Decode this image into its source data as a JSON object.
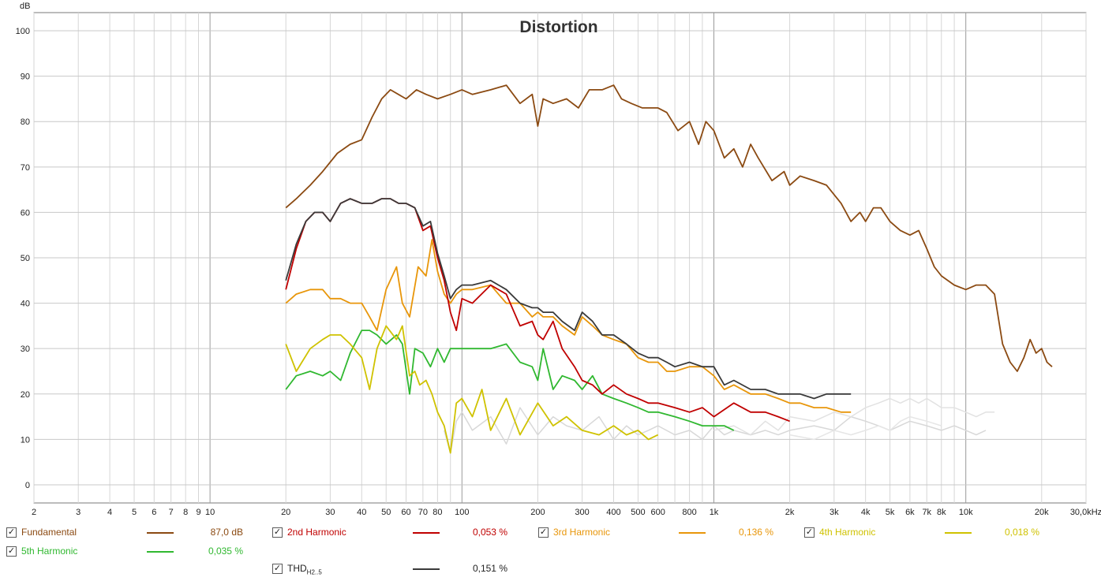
{
  "chart_data": {
    "type": "line",
    "title": "Distortion",
    "xlabel": "",
    "ylabel": "dB",
    "xscale": "log",
    "xlim": [
      2,
      30000
    ],
    "ylim": [
      -4,
      104
    ],
    "grid": true,
    "x_tick_labels": [
      {
        "v": 2,
        "t": "2"
      },
      {
        "v": 3,
        "t": "3"
      },
      {
        "v": 4,
        "t": "4"
      },
      {
        "v": 5,
        "t": "5"
      },
      {
        "v": 6,
        "t": "6"
      },
      {
        "v": 7,
        "t": "7"
      },
      {
        "v": 8,
        "t": "8"
      },
      {
        "v": 9,
        "t": "9"
      },
      {
        "v": 10,
        "t": "10"
      },
      {
        "v": 20,
        "t": "20"
      },
      {
        "v": 30,
        "t": "30"
      },
      {
        "v": 40,
        "t": "40"
      },
      {
        "v": 50,
        "t": "50"
      },
      {
        "v": 60,
        "t": "60"
      },
      {
        "v": 70,
        "t": "70"
      },
      {
        "v": 80,
        "t": "80"
      },
      {
        "v": 100,
        "t": "100"
      },
      {
        "v": 200,
        "t": "200"
      },
      {
        "v": 300,
        "t": "300"
      },
      {
        "v": 400,
        "t": "400"
      },
      {
        "v": 500,
        "t": "500"
      },
      {
        "v": 600,
        "t": "600"
      },
      {
        "v": 800,
        "t": "800"
      },
      {
        "v": 1000,
        "t": "1k"
      },
      {
        "v": 2000,
        "t": "2k"
      },
      {
        "v": 3000,
        "t": "3k"
      },
      {
        "v": 4000,
        "t": "4k"
      },
      {
        "v": 5000,
        "t": "5k"
      },
      {
        "v": 6000,
        "t": "6k"
      },
      {
        "v": 7000,
        "t": "7k"
      },
      {
        "v": 8000,
        "t": "8k"
      },
      {
        "v": 10000,
        "t": "10k"
      },
      {
        "v": 20000,
        "t": "20k"
      },
      {
        "v": 30000,
        "t": "30,0kHz"
      }
    ],
    "y_ticks": [
      0,
      10,
      20,
      30,
      40,
      50,
      60,
      70,
      80,
      90,
      100
    ],
    "series": [
      {
        "name": "Fundamental",
        "color": "#8b4a12",
        "value_label": "87,0 dB",
        "x": [
          20,
          22,
          25,
          28,
          32,
          36,
          40,
          44,
          48,
          52,
          60,
          66,
          72,
          80,
          90,
          100,
          110,
          130,
          150,
          170,
          190,
          200,
          210,
          230,
          260,
          290,
          320,
          360,
          400,
          430,
          470,
          520,
          560,
          600,
          650,
          720,
          800,
          870,
          930,
          1000,
          1100,
          1200,
          1300,
          1400,
          1500,
          1700,
          1900,
          2000,
          2200,
          2500,
          2800,
          3200,
          3500,
          3800,
          4000,
          4300,
          4600,
          5000,
          5500,
          6000,
          6500,
          7000,
          7500,
          8000,
          9000,
          10000,
          11000,
          12000,
          13000,
          14000,
          15000,
          16000,
          17000,
          18000,
          19000,
          20000,
          21000,
          22000
        ],
        "y": [
          61,
          63,
          66,
          69,
          73,
          75,
          76,
          81,
          85,
          87,
          85,
          87,
          86,
          85,
          86,
          87,
          86,
          87,
          88,
          84,
          86,
          79,
          85,
          84,
          85,
          83,
          87,
          87,
          88,
          85,
          84,
          83,
          83,
          83,
          82,
          78,
          80,
          75,
          80,
          78,
          72,
          74,
          70,
          75,
          72,
          67,
          69,
          66,
          68,
          67,
          66,
          62,
          58,
          60,
          58,
          61,
          61,
          58,
          56,
          55,
          56,
          52,
          48,
          46,
          44,
          43,
          44,
          44,
          42,
          31,
          27,
          25,
          28,
          32,
          29,
          30,
          27,
          26
        ]
      },
      {
        "name": "2nd Harmonic",
        "color": "#c00000",
        "value_label": "0,053 %",
        "x": [
          20,
          22,
          24,
          26,
          28,
          30,
          33,
          36,
          40,
          44,
          48,
          52,
          56,
          60,
          65,
          70,
          75,
          80,
          85,
          90,
          95,
          100,
          110,
          130,
          150,
          170,
          190,
          200,
          210,
          230,
          250,
          280,
          300,
          330,
          360,
          400,
          450,
          500,
          550,
          600,
          700,
          800,
          900,
          1000,
          1200,
          1400,
          1600,
          1800,
          2000
        ],
        "y": [
          43,
          52,
          58,
          60,
          60,
          58,
          62,
          63,
          62,
          62,
          63,
          63,
          62,
          62,
          61,
          56,
          57,
          50,
          45,
          38,
          34,
          41,
          40,
          44,
          42,
          35,
          36,
          33,
          32,
          36,
          30,
          26,
          23,
          22,
          20,
          22,
          20,
          19,
          18,
          18,
          17,
          16,
          17,
          15,
          18,
          16,
          16,
          15,
          14
        ]
      },
      {
        "name": "3rd Harmonic",
        "color": "#e8960a",
        "value_label": "0,136 %",
        "x": [
          20,
          22,
          25,
          28,
          30,
          33,
          36,
          40,
          43,
          46,
          50,
          55,
          58,
          62,
          67,
          72,
          76,
          80,
          85,
          90,
          95,
          100,
          110,
          130,
          150,
          170,
          190,
          200,
          210,
          230,
          250,
          280,
          300,
          330,
          360,
          400,
          450,
          500,
          550,
          600,
          650,
          700,
          800,
          900,
          1000,
          1100,
          1200,
          1400,
          1600,
          1800,
          2000,
          2200,
          2500,
          2800,
          3200,
          3500
        ],
        "y": [
          40,
          42,
          43,
          43,
          41,
          41,
          40,
          40,
          37,
          34,
          43,
          48,
          40,
          37,
          48,
          46,
          54,
          47,
          42,
          40,
          42,
          43,
          43,
          44,
          40,
          40,
          37,
          38,
          37,
          37,
          35,
          33,
          37,
          35,
          33,
          32,
          31,
          28,
          27,
          27,
          25,
          25,
          26,
          26,
          24,
          21,
          22,
          20,
          20,
          19,
          18,
          18,
          17,
          17,
          16,
          16
        ]
      },
      {
        "name": "4th Harmonic",
        "color": "#cfc200",
        "value_label": "0,018 %",
        "x": [
          20,
          22,
          25,
          28,
          30,
          33,
          36,
          40,
          43,
          46,
          50,
          55,
          58,
          62,
          65,
          68,
          72,
          76,
          80,
          85,
          90,
          95,
          100,
          110,
          120,
          130,
          150,
          170,
          200,
          230,
          260,
          300,
          350,
          400,
          450,
          500,
          550,
          600
        ],
        "y": [
          31,
          25,
          30,
          32,
          33,
          33,
          31,
          28,
          21,
          30,
          35,
          32,
          35,
          24,
          25,
          22,
          23,
          20,
          16,
          13,
          7,
          18,
          19,
          15,
          21,
          12,
          19,
          11,
          18,
          13,
          15,
          12,
          11,
          13,
          11,
          12,
          10,
          11
        ]
      },
      {
        "name": "5th Harmonic",
        "color": "#30b830",
        "value_label": "0,035 %",
        "x": [
          20,
          22,
          25,
          28,
          30,
          33,
          36,
          40,
          43,
          46,
          50,
          55,
          58,
          62,
          65,
          70,
          75,
          80,
          85,
          90,
          95,
          100,
          110,
          130,
          150,
          170,
          190,
          200,
          210,
          230,
          250,
          280,
          300,
          330,
          360,
          400,
          450,
          500,
          550,
          600,
          700,
          800,
          900,
          1000,
          1100,
          1200
        ],
        "y": [
          21,
          24,
          25,
          24,
          25,
          23,
          29,
          34,
          34,
          33,
          31,
          33,
          31,
          20,
          30,
          29,
          26,
          30,
          27,
          30,
          30,
          30,
          30,
          30,
          31,
          27,
          26,
          23,
          30,
          21,
          24,
          23,
          21,
          24,
          20,
          19,
          18,
          17,
          16,
          16,
          15,
          14,
          13,
          13,
          13,
          12
        ]
      },
      {
        "name": "THD",
        "color": "#3a3a3a",
        "value_label": "0,151 %",
        "x": [
          20,
          22,
          24,
          26,
          28,
          30,
          33,
          36,
          40,
          44,
          48,
          52,
          56,
          60,
          65,
          70,
          75,
          80,
          85,
          90,
          95,
          100,
          110,
          130,
          150,
          170,
          190,
          200,
          210,
          230,
          250,
          280,
          300,
          330,
          360,
          400,
          450,
          500,
          550,
          600,
          650,
          700,
          800,
          900,
          1000,
          1100,
          1200,
          1400,
          1600,
          1800,
          2000,
          2200,
          2500,
          2800,
          3200,
          3500
        ],
        "y": [
          45,
          53,
          58,
          60,
          60,
          58,
          62,
          63,
          62,
          62,
          63,
          63,
          62,
          62,
          61,
          57,
          58,
          51,
          46,
          41,
          43,
          44,
          44,
          45,
          43,
          40,
          39,
          39,
          38,
          38,
          36,
          34,
          38,
          36,
          33,
          33,
          31,
          29,
          28,
          28,
          27,
          26,
          27,
          26,
          26,
          22,
          23,
          21,
          21,
          20,
          20,
          20,
          19,
          20,
          20,
          20
        ]
      }
    ],
    "faded_series": [
      {
        "name": "",
        "color": "#d8d8d8",
        "x": [
          85,
          90,
          95,
          100,
          110,
          130,
          150,
          170,
          200,
          230,
          260,
          300,
          350,
          400,
          450,
          500,
          550,
          600,
          700,
          800,
          900,
          1000,
          1100,
          1200,
          1400,
          1600,
          1800,
          2000,
          2500,
          3000,
          3500,
          4000,
          4500,
          5000,
          6000,
          7000,
          8000,
          9000,
          10000,
          11000,
          12000
        ],
        "y": [
          12,
          7,
          14,
          16,
          12,
          15,
          9,
          17,
          11,
          15,
          13,
          12,
          15,
          10,
          13,
          11,
          12,
          13,
          11,
          12,
          10,
          13,
          11,
          12,
          11,
          12,
          11,
          12,
          13,
          12,
          15,
          14,
          13,
          12,
          14,
          13,
          12,
          13,
          12,
          11,
          12
        ]
      },
      {
        "name": "",
        "color": "#e2e2e2",
        "x": [
          1000,
          1200,
          1400,
          1600,
          1800,
          2000,
          2500,
          3000,
          3500,
          4000,
          4500,
          5000,
          5500,
          6000,
          6500,
          7000,
          7500,
          8000,
          9000,
          10000,
          11000,
          12000,
          13000
        ],
        "y": [
          12,
          13,
          11,
          14,
          12,
          15,
          14,
          16,
          15,
          17,
          18,
          19,
          18,
          19,
          18,
          19,
          18,
          17,
          17,
          16,
          15,
          16,
          16
        ]
      },
      {
        "name": "",
        "color": "#e6e6e6",
        "x": [
          2000,
          2500,
          3000,
          3500,
          4000,
          4500,
          5000,
          5500,
          6000,
          7000,
          8000
        ],
        "y": [
          11,
          10,
          12,
          11,
          12,
          13,
          12,
          14,
          15,
          14,
          13
        ]
      }
    ]
  },
  "legend": {
    "items": [
      {
        "label": "Fundamental",
        "color": "#8b4a12",
        "value": "87,0 dB",
        "check": "✓"
      },
      {
        "label": "2nd Harmonic",
        "color": "#c00000",
        "value": "0,053 %",
        "check": "✓"
      },
      {
        "label": "3rd Harmonic",
        "color": "#e8960a",
        "value": "0,136 %",
        "check": "✓"
      },
      {
        "label": "4th Harmonic",
        "color": "#cfc200",
        "value": "0,018 %",
        "check": "✓"
      },
      {
        "label": "5th Harmonic",
        "color": "#30b830",
        "value": "0,035 %",
        "check": "✓"
      }
    ],
    "thd": {
      "label": "THD",
      "sub": "H2..5",
      "color": "#3a3a3a",
      "value": "0,151 %",
      "check": "✓"
    }
  }
}
